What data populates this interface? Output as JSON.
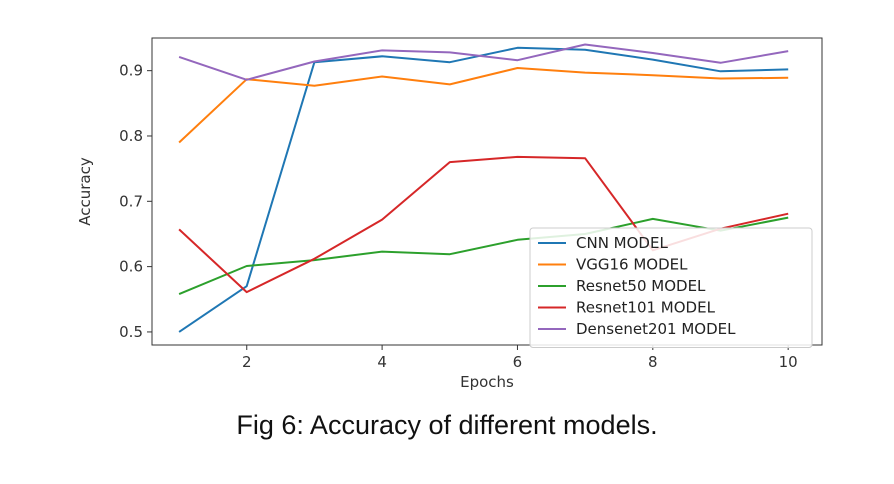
{
  "caption": "Fig 6: Accuracy of different models.",
  "chart_data": {
    "type": "line",
    "xlabel": "Epochs",
    "ylabel": "Accuracy",
    "x": [
      1,
      2,
      3,
      4,
      5,
      6,
      7,
      8,
      9,
      10
    ],
    "xlim": [
      0.6,
      10.5
    ],
    "ylim": [
      0.48,
      0.95
    ],
    "xticks": [
      2,
      4,
      6,
      8,
      10
    ],
    "yticks": [
      0.5,
      0.6,
      0.7,
      0.8,
      0.9
    ],
    "grid": false,
    "legend_position": "lower-right",
    "series": [
      {
        "name": "CNN MODEL",
        "color": "#1f77b4",
        "values": [
          0.5,
          0.57,
          0.913,
          0.922,
          0.913,
          0.935,
          0.932,
          0.917,
          0.899,
          0.902
        ]
      },
      {
        "name": "VGG16 MODEL",
        "color": "#ff7f0e",
        "values": [
          0.79,
          0.887,
          0.877,
          0.891,
          0.879,
          0.904,
          0.897,
          0.893,
          0.888,
          0.889
        ]
      },
      {
        "name": "Resnet50 MODEL",
        "color": "#2ca02c",
        "values": [
          0.558,
          0.601,
          0.61,
          0.623,
          0.619,
          0.641,
          0.65,
          0.673,
          0.655,
          0.675
        ]
      },
      {
        "name": "Resnet101 MODEL",
        "color": "#d62728",
        "values": [
          0.657,
          0.561,
          0.612,
          0.672,
          0.76,
          0.768,
          0.766,
          0.625,
          0.658,
          0.681
        ]
      },
      {
        "name": "Densenet201 MODEL",
        "color": "#9467bd",
        "values": [
          0.921,
          0.886,
          0.914,
          0.931,
          0.928,
          0.916,
          0.94,
          0.927,
          0.912,
          0.93
        ]
      }
    ]
  }
}
